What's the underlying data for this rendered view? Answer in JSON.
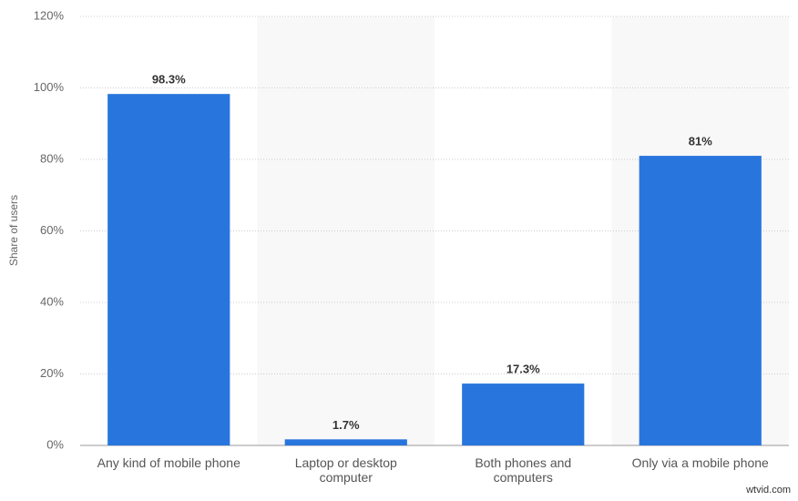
{
  "chart_data": {
    "type": "bar",
    "y_label": "Share of users",
    "categories": [
      "Any kind of mobile phone",
      "Laptop or desktop computer",
      "Both phones and computers",
      "Only via a mobile phone"
    ],
    "values": [
      98.3,
      1.7,
      17.3,
      81
    ],
    "value_labels": [
      "98.3%",
      "1.7%",
      "17.3%",
      "81%"
    ],
    "color": "#2876dd",
    "ylim": [
      0,
      120
    ],
    "yticks": [
      {
        "value": 0,
        "label": "0%"
      },
      {
        "value": 20,
        "label": "20%"
      },
      {
        "value": 40,
        "label": "40%"
      },
      {
        "value": 60,
        "label": "60%"
      },
      {
        "value": 80,
        "label": "80%"
      },
      {
        "value": 100,
        "label": "100%"
      },
      {
        "value": 120,
        "label": "120%"
      }
    ],
    "grid": true
  },
  "watermark": "wtvid.com"
}
